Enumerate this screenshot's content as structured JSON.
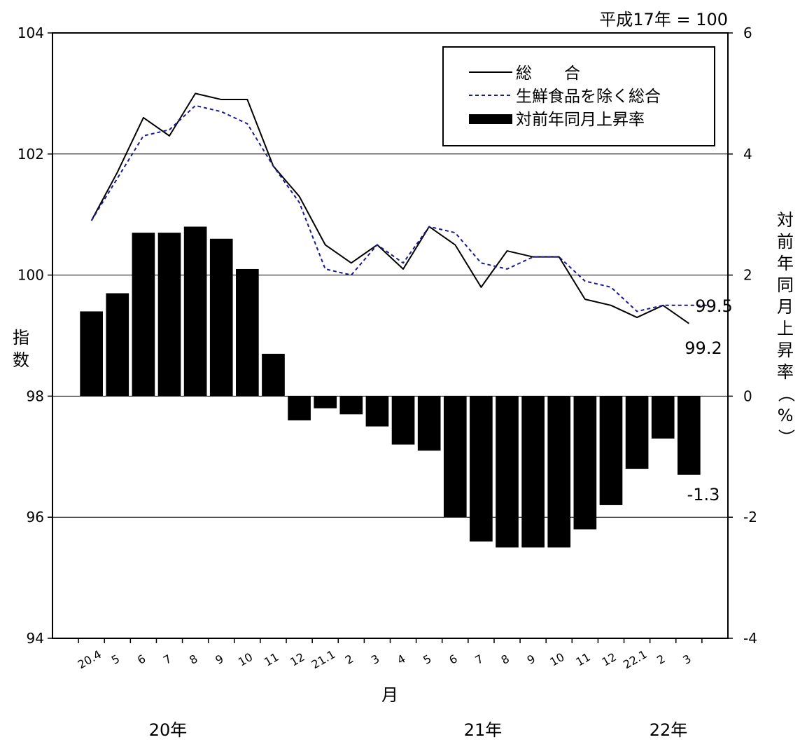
{
  "chart_data": {
    "type": "bar+line",
    "base_note": "平成17年 = 100",
    "left_axis": {
      "label": "指数",
      "range": [
        94,
        104
      ],
      "ticks": [
        "94",
        "96",
        "98",
        "100",
        "102",
        "104"
      ]
    },
    "right_axis": {
      "label": "対前年同月上昇率（%）",
      "range": [
        -4,
        6
      ],
      "ticks": [
        "-4",
        "-2",
        "0",
        "2",
        "4",
        "6"
      ]
    },
    "xlabel": "月",
    "categories": [
      "20.4",
      "5",
      "6",
      "7",
      "8",
      "9",
      "10",
      "11",
      "12",
      "21.1",
      "2",
      "3",
      "4",
      "5",
      "6",
      "7",
      "8",
      "9",
      "10",
      "11",
      "12",
      "22.1",
      "2",
      "3"
    ],
    "year_labels": [
      "20年",
      "21年",
      "22年"
    ],
    "grid": "horizontal",
    "legend": {
      "position": "top-right",
      "entries": [
        "総　　合",
        "生鮮食品を除く総合",
        "対前年同月上昇率"
      ]
    },
    "series": [
      {
        "name": "総　　合",
        "type": "line",
        "axis": "left",
        "style": "solid",
        "color": "#000000",
        "values": [
          100.9,
          101.7,
          102.6,
          102.3,
          103.0,
          102.9,
          102.9,
          101.8,
          101.3,
          100.5,
          100.2,
          100.5,
          100.1,
          100.8,
          100.5,
          99.8,
          100.4,
          100.3,
          100.3,
          99.6,
          99.5,
          99.3,
          99.5,
          99.2
        ]
      },
      {
        "name": "生鮮食品を除く総合",
        "type": "line",
        "axis": "left",
        "style": "dashed",
        "color": "#1a1a8c",
        "values": [
          100.9,
          101.6,
          102.3,
          102.4,
          102.8,
          102.7,
          102.5,
          101.8,
          101.2,
          100.1,
          100.0,
          100.5,
          100.2,
          100.8,
          100.7,
          100.2,
          100.1,
          100.3,
          100.3,
          99.9,
          99.8,
          99.4,
          99.5,
          99.5
        ]
      },
      {
        "name": "対前年同月上昇率",
        "type": "bar",
        "axis": "right",
        "color": "#000000",
        "values": [
          1.4,
          1.7,
          2.7,
          2.7,
          2.8,
          2.6,
          2.1,
          0.7,
          -0.4,
          -0.2,
          -0.3,
          -0.5,
          -0.8,
          -0.9,
          -2.0,
          -2.4,
          -2.5,
          -2.5,
          -2.5,
          -2.2,
          -1.8,
          -1.2,
          -0.7,
          -1.3
        ]
      }
    ],
    "annotations": [
      "99.5",
      "99.2",
      "-1.3"
    ]
  }
}
